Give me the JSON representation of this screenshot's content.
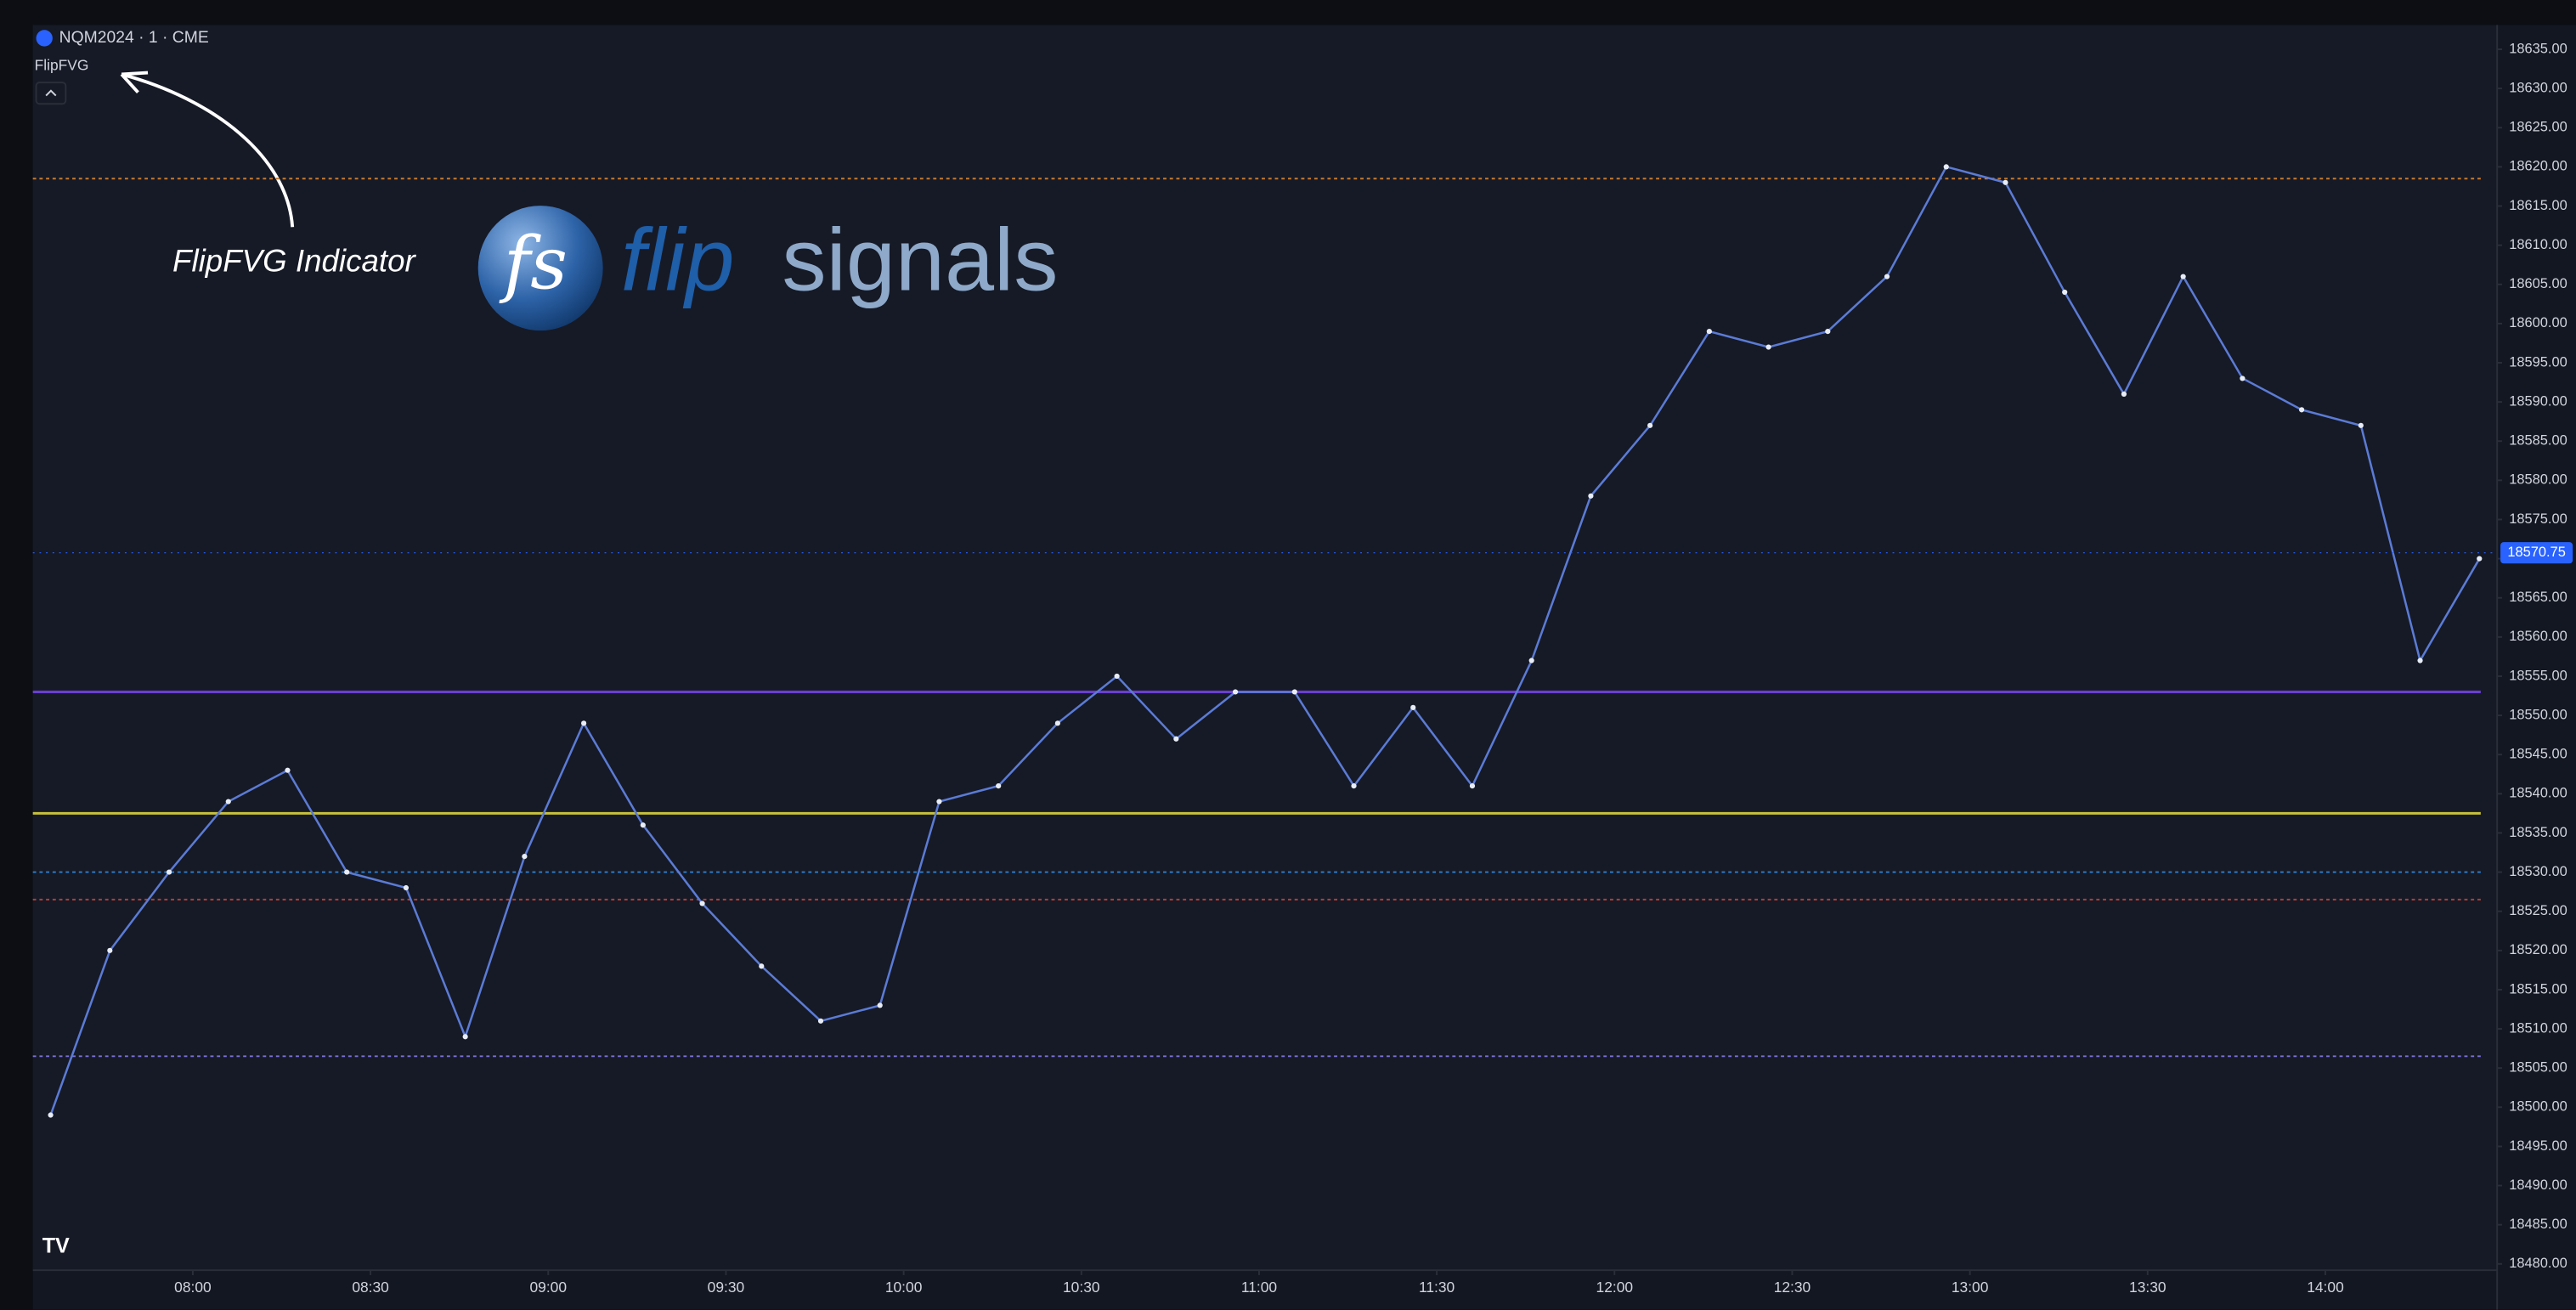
{
  "chart_data": {
    "type": "line",
    "title": "NQM2024 · 1 · CME",
    "indicator": "FlipFVG",
    "annotation": "FlipFVG Indicator",
    "logo": {
      "mark": "fs",
      "word_a": "flip",
      "word_b": "signals"
    },
    "x": [
      "07:36",
      "07:46",
      "07:56",
      "08:06",
      "08:16",
      "08:26",
      "08:36",
      "08:46",
      "08:56",
      "09:06",
      "09:16",
      "09:26",
      "09:36",
      "09:46",
      "09:56",
      "10:06",
      "10:16",
      "10:26",
      "10:36",
      "10:46",
      "10:56",
      "11:06",
      "11:16",
      "11:26",
      "11:36",
      "11:46",
      "11:56",
      "12:06",
      "12:16",
      "12:26",
      "12:36",
      "12:46",
      "12:56",
      "13:06",
      "13:16",
      "13:26",
      "13:36",
      "13:46",
      "13:56",
      "14:06",
      "14:16",
      "14:26"
    ],
    "values": [
      18499,
      18520,
      18530,
      18539,
      18543,
      18530,
      18528,
      18509,
      18532,
      18549,
      18536,
      18526,
      18518,
      18511,
      18513,
      18539,
      18541,
      18549,
      18555,
      18547,
      18553,
      18553,
      18541,
      18551,
      18541,
      18557,
      18578,
      18587,
      18599,
      18597,
      18599,
      18606,
      18620,
      18618,
      18604,
      18591,
      18606,
      18593,
      18589,
      18587,
      18557,
      18570
    ],
    "color": "#5b7bd5",
    "last_price": 18570.75,
    "levels": [
      {
        "value": 18618.5,
        "color": "#c77a2e",
        "style": "dotted"
      },
      {
        "value": 18553,
        "color": "#6a3fd0",
        "style": "solid"
      },
      {
        "value": 18537.5,
        "color": "#c8c23a",
        "style": "solid"
      },
      {
        "value": 18530,
        "color": "#2f7fd0",
        "style": "dotted"
      },
      {
        "value": 18526.5,
        "color": "#b0403a",
        "style": "dotted"
      },
      {
        "value": 18506.5,
        "color": "#7a6fd8",
        "style": "dotted"
      }
    ],
    "xlim": [
      "07:33",
      "14:29"
    ],
    "xticks": [
      "08:00",
      "08:30",
      "09:00",
      "09:30",
      "10:00",
      "10:30",
      "11:00",
      "11:30",
      "12:00",
      "12:30",
      "13:00",
      "13:30",
      "14:00"
    ],
    "ylim": [
      18479.2,
      18638.1
    ],
    "yticks": [
      {
        "value": 18480,
        "label": "18480.00"
      },
      {
        "value": 18485,
        "label": "18485.00"
      },
      {
        "value": 18490,
        "label": "18490.00"
      },
      {
        "value": 18495,
        "label": "18495.00"
      },
      {
        "value": 18500,
        "label": "18500.00"
      },
      {
        "value": 18505,
        "label": "18505.00"
      },
      {
        "value": 18510,
        "label": "18510.00"
      },
      {
        "value": 18515,
        "label": "18515.00"
      },
      {
        "value": 18520,
        "label": "18520.00"
      },
      {
        "value": 18525,
        "label": "18525.00"
      },
      {
        "value": 18530,
        "label": "18530.00"
      },
      {
        "value": 18535,
        "label": "18535.00"
      },
      {
        "value": 18540,
        "label": "18540.00"
      },
      {
        "value": 18545,
        "label": "18545.00"
      },
      {
        "value": 18550,
        "label": "18550.00"
      },
      {
        "value": 18555,
        "label": "18555.00"
      },
      {
        "value": 18560,
        "label": "18560.00"
      },
      {
        "value": 18565,
        "label": "18565.00"
      },
      {
        "value": 18570,
        "label": "18570.00"
      },
      {
        "value": 18575,
        "label": "18575.00"
      },
      {
        "value": 18580,
        "label": "18580.00"
      },
      {
        "value": 18585,
        "label": "18585.00"
      },
      {
        "value": 18590,
        "label": "18590.00"
      },
      {
        "value": 18595,
        "label": "18595.00"
      },
      {
        "value": 18600,
        "label": "18600.00"
      },
      {
        "value": 18605,
        "label": "18605.00"
      },
      {
        "value": 18610,
        "label": "18610.00"
      },
      {
        "value": 18615,
        "label": "18615.00"
      },
      {
        "value": 18620,
        "label": "18620.00"
      },
      {
        "value": 18625,
        "label": "18625.00"
      },
      {
        "value": 18630,
        "label": "18630.00"
      },
      {
        "value": 18635,
        "label": "18635.00"
      }
    ],
    "grid": false
  }
}
